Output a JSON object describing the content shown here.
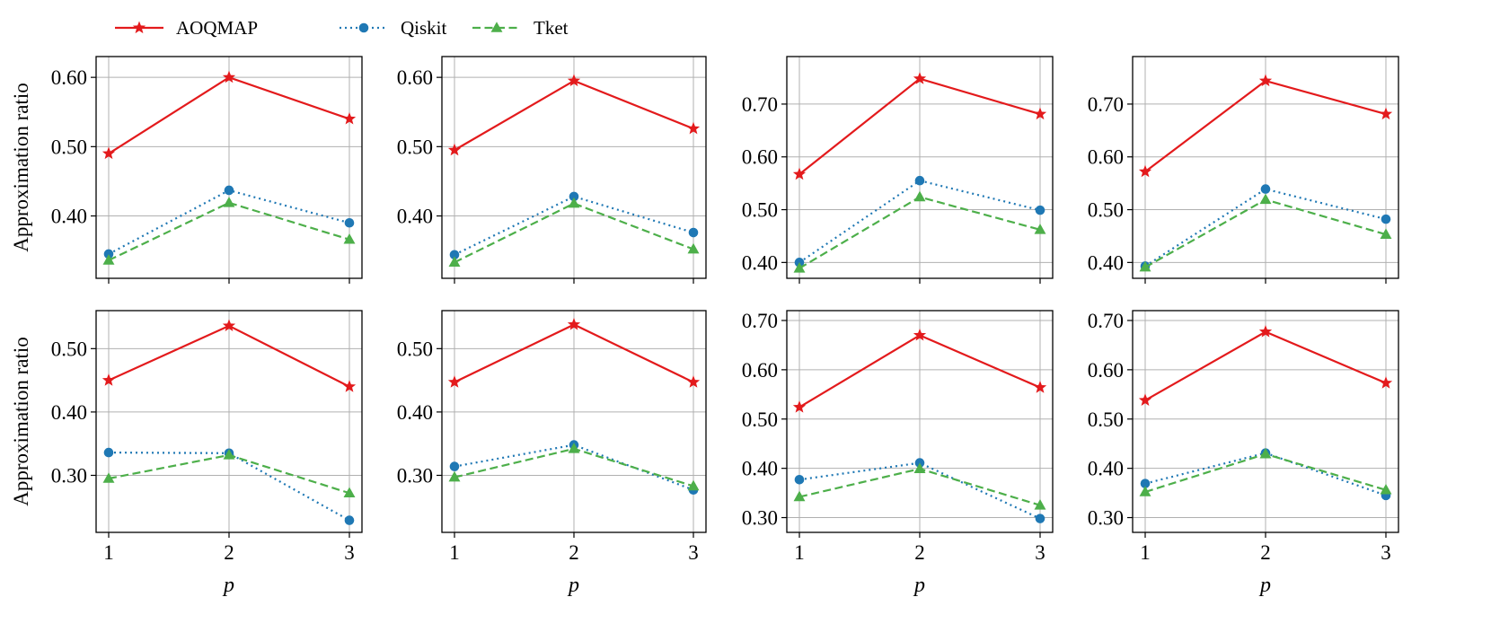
{
  "legend": {
    "placement": "top-left",
    "entries": [
      {
        "label": "AOQMAP",
        "color": "#e31a1c",
        "linestyle": "solid",
        "marker": "star"
      },
      {
        "label": "Qiskit",
        "color": "#1f78b4",
        "linestyle": "dotted",
        "marker": "circle"
      },
      {
        "label": "Tket",
        "color": "#4daf4a",
        "linestyle": "dashed",
        "marker": "triangle"
      }
    ]
  },
  "chart_data": [
    {
      "type": "line",
      "xlabel": "",
      "ylabel": "Approximation ratio",
      "x": [
        1,
        2,
        3
      ],
      "xticks": [
        "1",
        "2",
        "3"
      ],
      "ylim": [
        0.31,
        0.63
      ],
      "yticks": [
        "0.40",
        "0.50",
        "0.60"
      ],
      "grid": true,
      "series": [
        {
          "name": "AOQMAP",
          "values": [
            0.49,
            0.6,
            0.54
          ]
        },
        {
          "name": "Qiskit",
          "values": [
            0.345,
            0.437,
            0.39
          ]
        },
        {
          "name": "Tket",
          "values": [
            0.336,
            0.419,
            0.366
          ]
        }
      ]
    },
    {
      "type": "line",
      "xlabel": "",
      "ylabel": "",
      "x": [
        1,
        2,
        3
      ],
      "xticks": [
        "1",
        "2",
        "3"
      ],
      "ylim": [
        0.31,
        0.63
      ],
      "yticks": [
        "0.40",
        "0.50",
        "0.60"
      ],
      "grid": true,
      "series": [
        {
          "name": "AOQMAP",
          "values": [
            0.495,
            0.595,
            0.526
          ]
        },
        {
          "name": "Qiskit",
          "values": [
            0.344,
            0.428,
            0.376
          ]
        },
        {
          "name": "Tket",
          "values": [
            0.333,
            0.418,
            0.352
          ]
        }
      ]
    },
    {
      "type": "line",
      "xlabel": "",
      "ylabel": "",
      "x": [
        1,
        2,
        3
      ],
      "xticks": [
        "1",
        "2",
        "3"
      ],
      "ylim": [
        0.37,
        0.79
      ],
      "yticks": [
        "0.40",
        "0.50",
        "0.60",
        "0.70"
      ],
      "grid": true,
      "series": [
        {
          "name": "AOQMAP",
          "values": [
            0.567,
            0.748,
            0.681
          ]
        },
        {
          "name": "Qiskit",
          "values": [
            0.4,
            0.555,
            0.499
          ]
        },
        {
          "name": "Tket",
          "values": [
            0.389,
            0.524,
            0.462
          ]
        }
      ]
    },
    {
      "type": "line",
      "xlabel": "",
      "ylabel": "",
      "x": [
        1,
        2,
        3
      ],
      "xticks": [
        "1",
        "2",
        "3"
      ],
      "ylim": [
        0.37,
        0.79
      ],
      "yticks": [
        "0.40",
        "0.50",
        "0.60",
        "0.70"
      ],
      "grid": true,
      "series": [
        {
          "name": "AOQMAP",
          "values": [
            0.572,
            0.744,
            0.681
          ]
        },
        {
          "name": "Qiskit",
          "values": [
            0.393,
            0.539,
            0.482
          ]
        },
        {
          "name": "Tket",
          "values": [
            0.391,
            0.519,
            0.453
          ]
        }
      ]
    },
    {
      "type": "line",
      "xlabel": "p",
      "ylabel": "Approximation ratio",
      "x": [
        1,
        2,
        3
      ],
      "xticks": [
        "1",
        "2",
        "3"
      ],
      "ylim": [
        0.21,
        0.56
      ],
      "yticks": [
        "0.30",
        "0.40",
        "0.50"
      ],
      "grid": true,
      "series": [
        {
          "name": "AOQMAP",
          "values": [
            0.45,
            0.536,
            0.44
          ]
        },
        {
          "name": "Qiskit",
          "values": [
            0.336,
            0.335,
            0.229
          ]
        },
        {
          "name": "Tket",
          "values": [
            0.295,
            0.332,
            0.272
          ]
        }
      ]
    },
    {
      "type": "line",
      "xlabel": "p",
      "ylabel": "",
      "x": [
        1,
        2,
        3
      ],
      "xticks": [
        "1",
        "2",
        "3"
      ],
      "ylim": [
        0.21,
        0.56
      ],
      "yticks": [
        "0.30",
        "0.40",
        "0.50"
      ],
      "grid": true,
      "series": [
        {
          "name": "AOQMAP",
          "values": [
            0.447,
            0.538,
            0.447
          ]
        },
        {
          "name": "Qiskit",
          "values": [
            0.314,
            0.348,
            0.277
          ]
        },
        {
          "name": "Tket",
          "values": [
            0.297,
            0.342,
            0.283
          ]
        }
      ]
    },
    {
      "type": "line",
      "xlabel": "p",
      "ylabel": "",
      "x": [
        1,
        2,
        3
      ],
      "xticks": [
        "1",
        "2",
        "3"
      ],
      "ylim": [
        0.27,
        0.72
      ],
      "yticks": [
        "0.30",
        "0.40",
        "0.50",
        "0.60",
        "0.70"
      ],
      "grid": true,
      "series": [
        {
          "name": "AOQMAP",
          "values": [
            0.524,
            0.67,
            0.564
          ]
        },
        {
          "name": "Qiskit",
          "values": [
            0.377,
            0.411,
            0.298
          ]
        },
        {
          "name": "Tket",
          "values": [
            0.342,
            0.399,
            0.325
          ]
        }
      ]
    },
    {
      "type": "line",
      "xlabel": "p",
      "ylabel": "",
      "x": [
        1,
        2,
        3
      ],
      "xticks": [
        "1",
        "2",
        "3"
      ],
      "ylim": [
        0.27,
        0.72
      ],
      "yticks": [
        "0.30",
        "0.40",
        "0.50",
        "0.60",
        "0.70"
      ],
      "grid": true,
      "series": [
        {
          "name": "AOQMAP",
          "values": [
            0.538,
            0.677,
            0.573
          ]
        },
        {
          "name": "Qiskit",
          "values": [
            0.369,
            0.431,
            0.345
          ]
        },
        {
          "name": "Tket",
          "values": [
            0.352,
            0.429,
            0.356
          ]
        }
      ]
    }
  ]
}
